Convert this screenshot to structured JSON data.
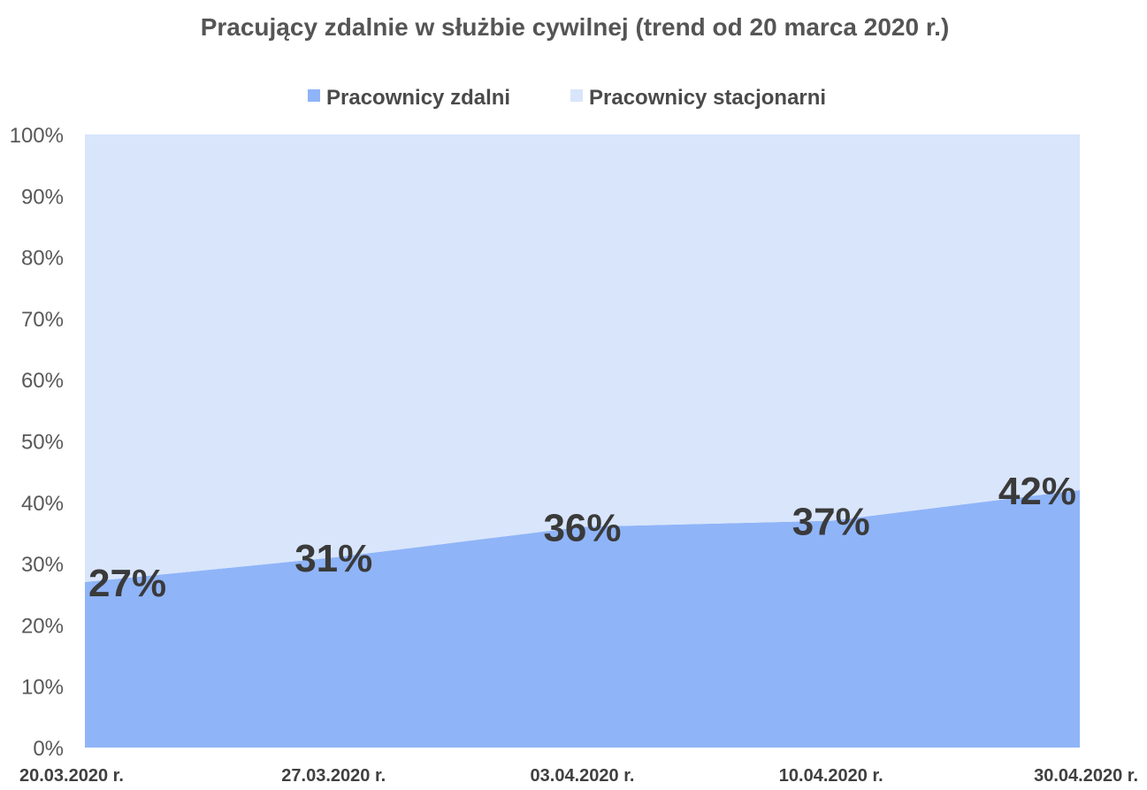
{
  "chart_data": {
    "type": "area",
    "stacked": "percent",
    "title": "Pracujący zdalnie w służbie cywilnej (trend od 20 marca 2020 r.)",
    "x": [
      "20.03.2020 r.",
      "27.03.2020 r.",
      "03.04.2020 r.",
      "10.04.2020 r.",
      "30.04.2020 r."
    ],
    "series": [
      {
        "name": "Pracownicy zdalni",
        "values": [
          27,
          31,
          36,
          37,
          42
        ],
        "data_labels": [
          "27%",
          "31%",
          "36%",
          "37%",
          "42%"
        ],
        "color": "#8fb4f8"
      },
      {
        "name": "Pracownicy stacjonarni",
        "values": [
          73,
          69,
          64,
          63,
          58
        ],
        "color": "#d8e5fb"
      }
    ],
    "ylim": [
      0,
      100
    ],
    "yticks": [
      0,
      10,
      20,
      30,
      40,
      50,
      60,
      70,
      80,
      90,
      100
    ],
    "ytick_labels": [
      "0%",
      "10%",
      "20%",
      "30%",
      "40%",
      "50%",
      "60%",
      "70%",
      "80%",
      "90%",
      "100%"
    ],
    "xlabel": "",
    "ylabel": "",
    "grid": false,
    "legend_position": "top"
  }
}
